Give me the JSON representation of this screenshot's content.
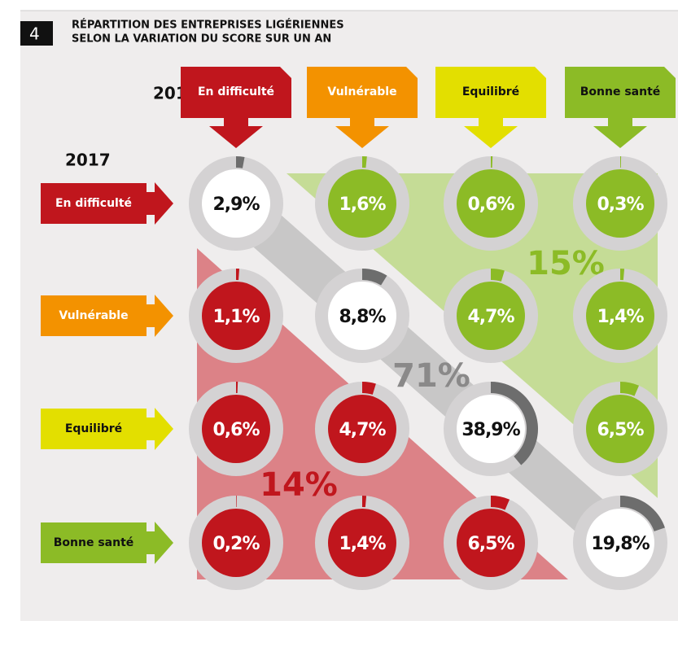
{
  "badge": "4",
  "title": [
    "RÉPARTITION DES ENTREPRISES LIGÉRIENNES",
    "SELON LA VARIATION DU SCORE SUR UN AN"
  ],
  "column_axis": "2018",
  "row_axis": "2017",
  "columns": [
    "En difficulté",
    "Vulnérable",
    "Equilibré",
    "Bonne santé"
  ],
  "rows": [
    "En difficulté",
    "Vulnérable",
    "Equilibré",
    "Bonne santé"
  ],
  "matrix": {
    "values": [
      [
        2.9,
        1.6,
        0.6,
        0.3
      ],
      [
        1.1,
        8.8,
        4.7,
        1.4
      ],
      [
        0.6,
        4.7,
        38.9,
        6.5
      ],
      [
        0.2,
        1.4,
        6.5,
        19.8
      ]
    ],
    "value_labels": [
      [
        "2,9%",
        "1,6%",
        "0,6%",
        "0,3%"
      ],
      [
        "1,1%",
        "8,8%",
        "4,7%",
        "1,4%"
      ],
      [
        "0,6%",
        "4,7%",
        "38,9%",
        "6,5%"
      ],
      [
        "0,2%",
        "1,4%",
        "6,5%",
        "19,8%"
      ]
    ]
  },
  "groups": [
    "15%",
    "71%",
    "14%"
  ]
}
